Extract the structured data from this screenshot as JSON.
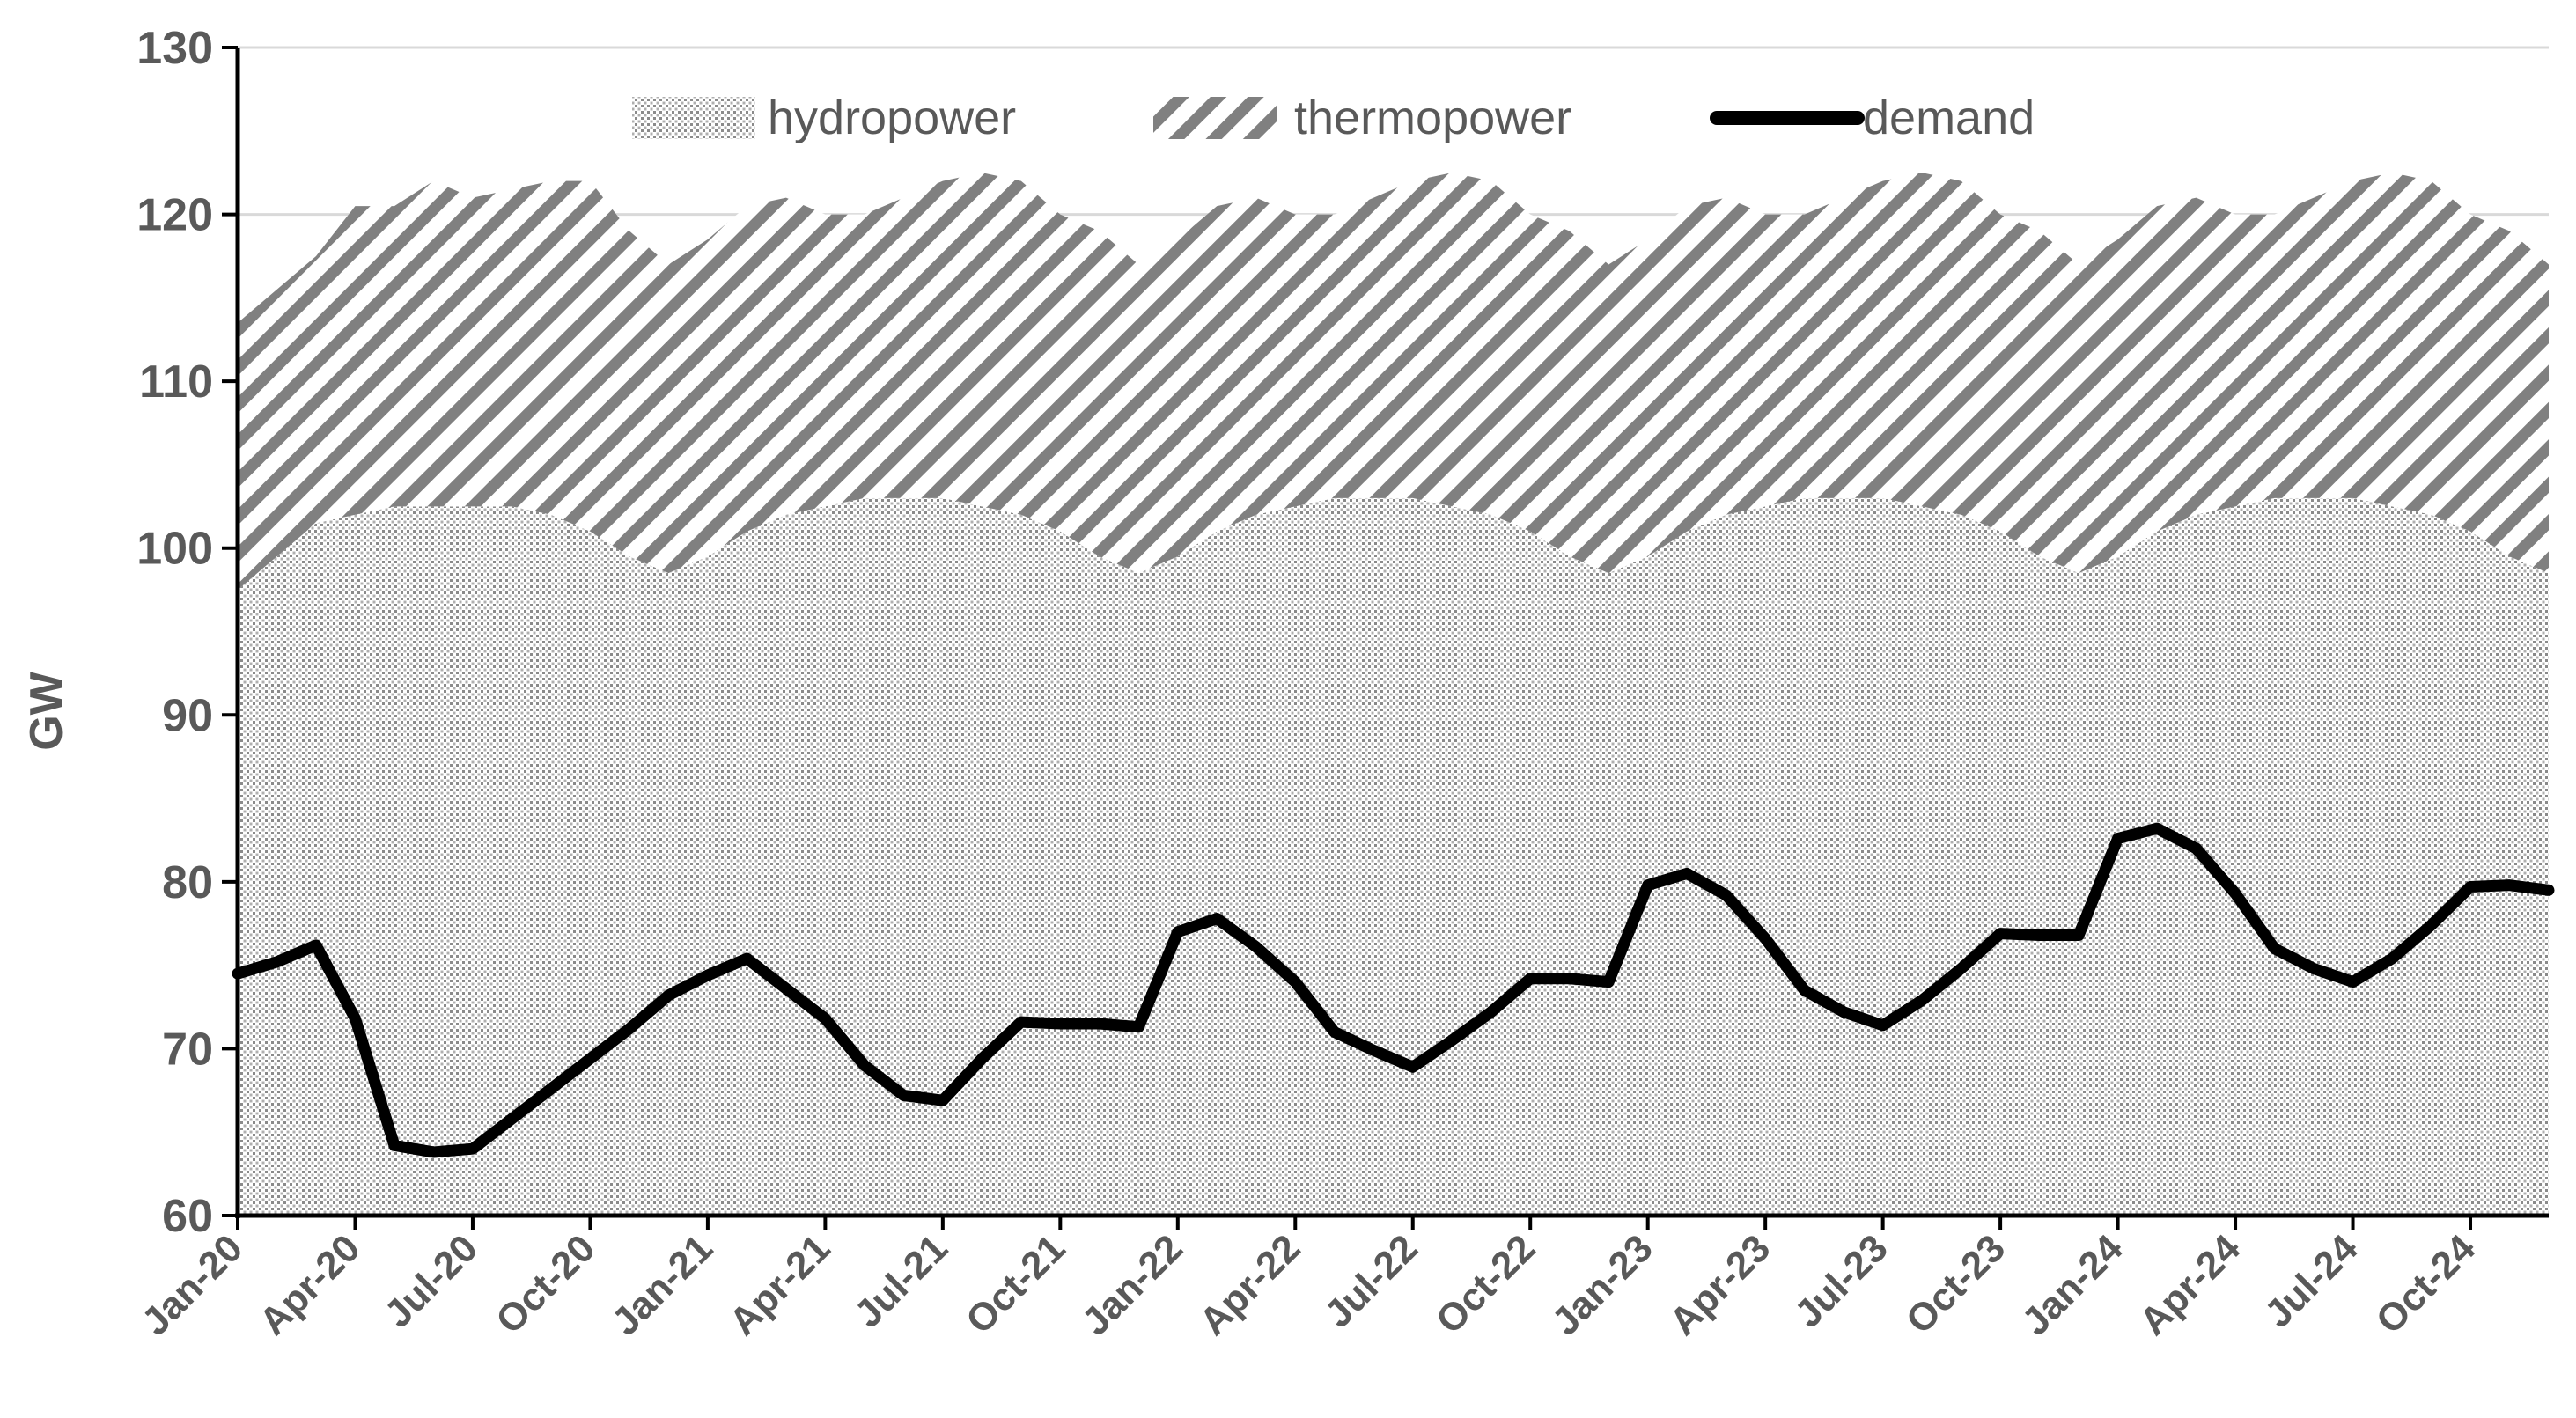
{
  "chart_data": {
    "type": "area",
    "ylabel": "GW",
    "xlabel": "",
    "ylim": [
      60,
      130
    ],
    "y_ticks": [
      "60",
      "70",
      "80",
      "90",
      "100",
      "110",
      "120",
      "130"
    ],
    "x_tick_labels": [
      "Jan-20",
      "Apr-20",
      "Jul-20",
      "Oct-20",
      "Jan-21",
      "Apr-21",
      "Jul-21",
      "Oct-21",
      "Jan-22",
      "Apr-22",
      "Jul-22",
      "Oct-22",
      "Jan-23",
      "Apr-23",
      "Jul-23",
      "Oct-23",
      "Jan-24",
      "Apr-24",
      "Jul-24",
      "Oct-24"
    ],
    "grid": "horizontal",
    "legend_position": "top",
    "x": [
      "Jan-20",
      "Feb-20",
      "Mar-20",
      "Apr-20",
      "May-20",
      "Jun-20",
      "Jul-20",
      "Aug-20",
      "Sep-20",
      "Oct-20",
      "Nov-20",
      "Dec-20",
      "Jan-21",
      "Feb-21",
      "Mar-21",
      "Apr-21",
      "May-21",
      "Jun-21",
      "Jul-21",
      "Aug-21",
      "Sep-21",
      "Oct-21",
      "Nov-21",
      "Dec-21",
      "Jan-22",
      "Feb-22",
      "Mar-22",
      "Apr-22",
      "May-22",
      "Jun-22",
      "Jul-22",
      "Aug-22",
      "Sep-22",
      "Oct-22",
      "Nov-22",
      "Dec-22",
      "Jan-23",
      "Feb-23",
      "Mar-23",
      "Apr-23",
      "May-23",
      "Jun-23",
      "Jul-23",
      "Aug-23",
      "Sep-23",
      "Oct-23",
      "Nov-23",
      "Dec-23",
      "Jan-24",
      "Feb-24",
      "Mar-24",
      "Apr-24",
      "May-24",
      "Jun-24",
      "Jul-24",
      "Aug-24",
      "Sep-24",
      "Oct-24",
      "Nov-24",
      "Dec-24"
    ],
    "series": [
      {
        "name": "hydropower",
        "kind": "area",
        "pattern": "dots",
        "color": "#7f7f7f",
        "values": [
          97.5,
          99.5,
          101.5,
          102,
          102.5,
          102.5,
          102.5,
          102.5,
          102,
          101,
          99.5,
          98.5,
          99.5,
          101,
          102,
          102.5,
          103,
          103,
          103,
          102.5,
          102,
          101,
          99.5,
          98.5,
          99.5,
          101,
          102,
          102.5,
          103,
          103,
          103,
          102.5,
          102,
          101,
          99.5,
          98.5,
          99.5,
          101,
          102,
          102.5,
          103,
          103,
          103,
          102.5,
          102,
          101,
          99.5,
          98.5,
          99.5,
          101,
          102,
          102.5,
          103,
          103,
          103,
          102.5,
          102,
          101,
          99.5,
          98.5
        ]
      },
      {
        "name": "thermopower",
        "kind": "area",
        "pattern": "diagonal",
        "color": "#7f7f7f",
        "values": [
          16,
          16,
          16,
          18.5,
          18,
          19.5,
          18.5,
          19,
          20,
          21,
          19.5,
          18.5,
          19,
          19.5,
          19,
          17.5,
          17,
          18,
          19,
          20,
          20,
          19,
          19.5,
          18.5,
          19,
          19.5,
          19,
          17.5,
          17,
          18,
          19,
          20,
          20,
          19,
          19.5,
          18.5,
          19,
          19.5,
          19,
          17.5,
          17,
          18,
          19,
          20,
          20,
          19,
          19.5,
          18.5,
          19,
          19.5,
          19,
          17.5,
          17,
          18,
          19,
          20,
          20,
          19,
          19.5,
          18.5
        ]
      },
      {
        "name": "demand",
        "kind": "line",
        "color": "#000000",
        "values": [
          74.5,
          75.2,
          76.2,
          71.8,
          64.2,
          63.8,
          64,
          65.8,
          67.6,
          69.4,
          71.2,
          73.2,
          74.4,
          75.4,
          73.6,
          71.8,
          69,
          67.2,
          66.9,
          69.4,
          71.6,
          71.5,
          71.5,
          71.3,
          77,
          77.8,
          76.1,
          74,
          71,
          69.9,
          68.9,
          70.5,
          72.2,
          74.2,
          74.2,
          74,
          79.8,
          80.5,
          79.2,
          76.6,
          73.5,
          72.2,
          71.4,
          72.9,
          74.8,
          76.9,
          76.8,
          76.8,
          82.6,
          83.2,
          82,
          79.3,
          76,
          74.8,
          74,
          75.4,
          77.4,
          79.7,
          79.8,
          79.5
        ]
      }
    ]
  }
}
